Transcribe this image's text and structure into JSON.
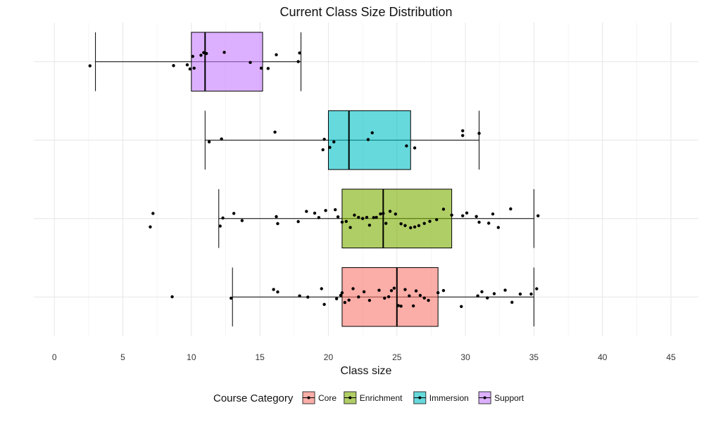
{
  "chart_data": {
    "type": "boxplot",
    "orientation": "horizontal",
    "title": "Current Class Size Distribution",
    "xlabel": "Class size",
    "ylabel": "",
    "xlim": [
      -1.5,
      47
    ],
    "xticks": [
      0,
      5,
      10,
      15,
      20,
      25,
      30,
      35,
      40,
      45
    ],
    "grid": true,
    "legend": {
      "title": "Course Category",
      "position": "bottom"
    },
    "series": [
      {
        "name": "Core",
        "color": "#F8766D",
        "whisker_low": 13,
        "q1": 21,
        "median": 25,
        "q3": 28,
        "whisker_high": 35,
        "points": [
          8.6,
          12.9,
          16,
          16.3,
          17.9,
          18.5,
          19.5,
          19.7,
          20.6,
          20.9,
          21.0,
          21.2,
          21.5,
          21.8,
          22.2,
          22.6,
          23.0,
          23.7,
          24.1,
          24.4,
          24.6,
          24.8,
          25.1,
          25.3,
          25.6,
          25.9,
          26.2,
          26.4,
          26.7,
          27.0,
          27.3,
          28.0,
          28.4,
          29.7,
          30.9,
          31.2,
          31.6,
          32.1,
          32.9,
          33.4,
          34.0,
          34.8,
          35.2
        ],
        "outliers": [
          8.6
        ]
      },
      {
        "name": "Enrichment",
        "color": "#7CAE00",
        "whisker_low": 12,
        "q1": 21,
        "median": 24,
        "q3": 29,
        "whisker_high": 35,
        "points": [
          7.0,
          7.2,
          12.1,
          12.3,
          13.1,
          13.7,
          16.2,
          16.3,
          17.8,
          18.4,
          19.0,
          19.3,
          19.8,
          20.5,
          20.7,
          21.0,
          21.3,
          21.6,
          21.9,
          22.2,
          22.5,
          22.8,
          23.0,
          23.3,
          23.5,
          23.8,
          24.0,
          24.2,
          24.5,
          24.9,
          25.3,
          25.6,
          26.0,
          26.3,
          26.6,
          27.0,
          27.4,
          27.9,
          28.4,
          29.0,
          29.8,
          30.1,
          30.8,
          31.0,
          31.7,
          32.0,
          32.4,
          33.3,
          35.3
        ],
        "outliers": [
          7.0,
          7.2
        ]
      },
      {
        "name": "Immersion",
        "color": "#00BFC4",
        "whisker_low": 11,
        "q1": 20,
        "median": 21.5,
        "q3": 26,
        "whisker_high": 31,
        "points": [
          11.3,
          12.2,
          16.1,
          19.6,
          19.7,
          20.1,
          20.4,
          22.9,
          23.2,
          25.7,
          26.3,
          29.8,
          29.8,
          31.0
        ],
        "outliers": []
      },
      {
        "name": "Support",
        "color": "#C77CFF",
        "whisker_low": 3,
        "q1": 10,
        "median": 11,
        "q3": 15.2,
        "whisker_high": 18,
        "points": [
          2.6,
          8.7,
          9.7,
          9.9,
          10.1,
          10.2,
          10.7,
          10.9,
          11.1,
          12.4,
          14.3,
          15.1,
          15.6,
          16.2,
          17.8,
          17.9
        ],
        "outliers": [
          2.6
        ]
      }
    ]
  }
}
